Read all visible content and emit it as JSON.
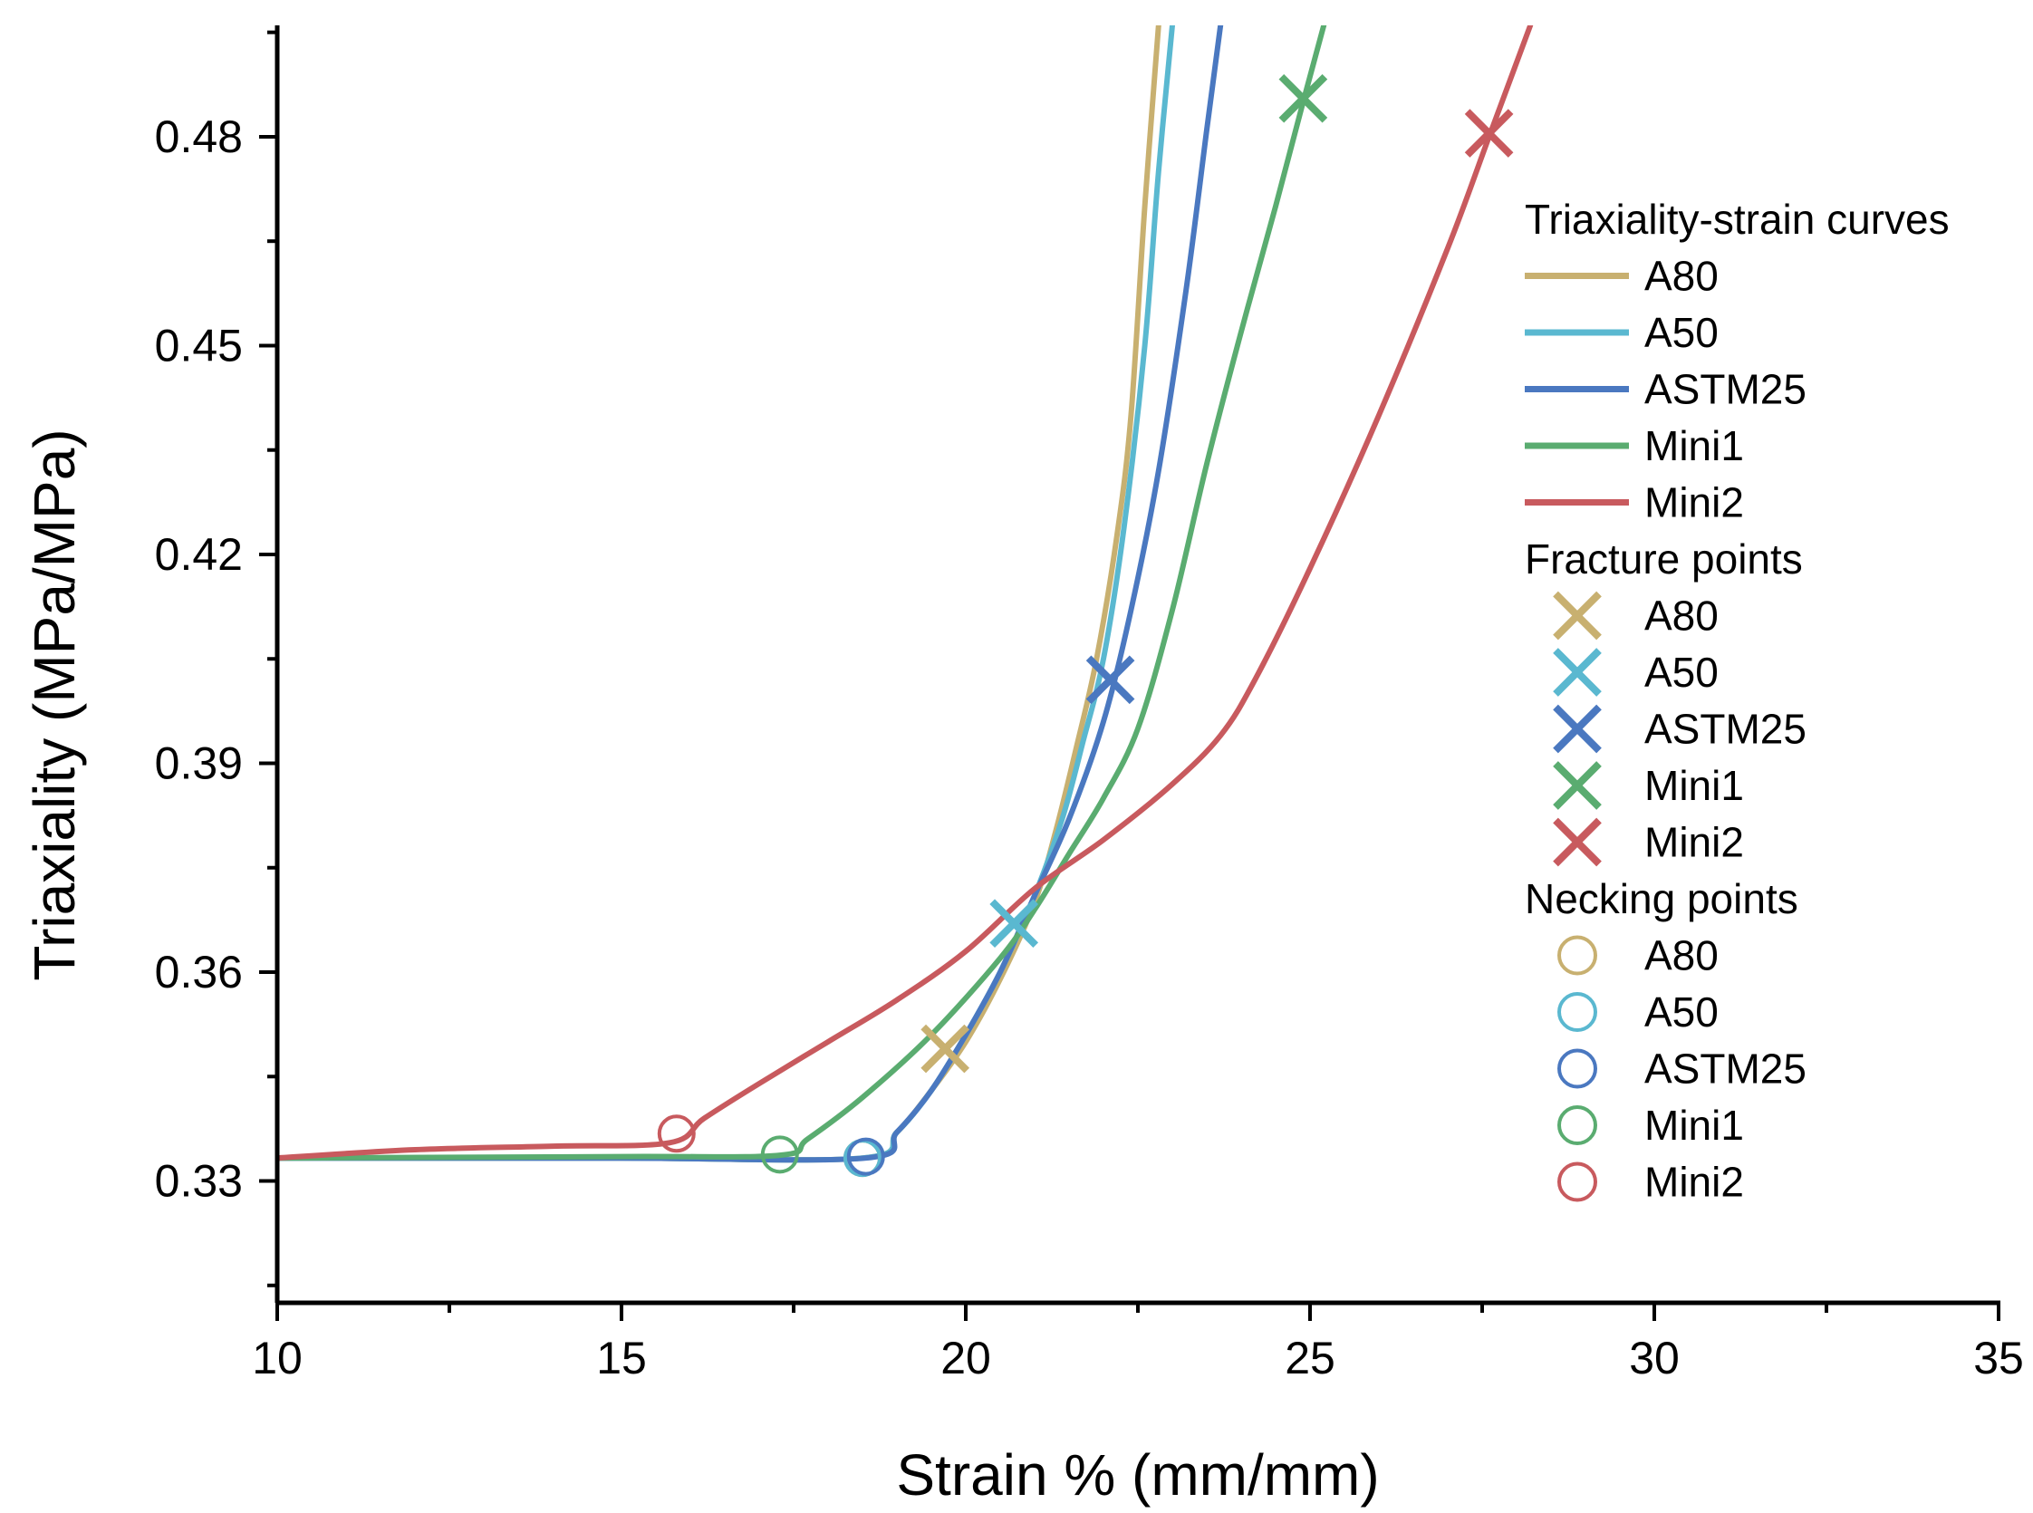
{
  "chart_data": {
    "type": "line",
    "xlabel": "Strain % (mm/mm)",
    "ylabel": "Triaxiality (MPa/MPa)",
    "xlim": [
      10,
      35
    ],
    "ylim": [
      0.3125,
      0.496
    ],
    "xticks": [
      10,
      15,
      20,
      25,
      30,
      35
    ],
    "xtick_labels": [
      "10",
      "15",
      "20",
      "25",
      "30",
      "35"
    ],
    "yticks": [
      0.33,
      0.36,
      0.39,
      0.42,
      0.45,
      0.48
    ],
    "ytick_labels": [
      "0.33",
      "0.36",
      "0.39",
      "0.42",
      "0.45",
      "0.48"
    ],
    "legend_position": "right",
    "legend_groups": [
      {
        "title": "Triaxiality-strain curves",
        "marker": "line",
        "entries": [
          "A80",
          "A50",
          "ASTM25",
          "Mini1",
          "Mini2"
        ]
      },
      {
        "title": "Fracture points",
        "marker": "x",
        "entries": [
          "A80",
          "A50",
          "ASTM25",
          "Mini1",
          "Mini2"
        ]
      },
      {
        "title": "Necking points",
        "marker": "circle",
        "entries": [
          "A80",
          "A50",
          "ASTM25",
          "Mini1",
          "Mini2"
        ]
      }
    ],
    "series": [
      {
        "name": "A80",
        "color": "#c8b070",
        "curve": [
          [
            10,
            0.3333
          ],
          [
            15,
            0.3333
          ],
          [
            18.5,
            0.3333
          ],
          [
            19.0,
            0.337
          ],
          [
            19.5,
            0.343
          ],
          [
            20.0,
            0.35
          ],
          [
            20.5,
            0.359
          ],
          [
            21.0,
            0.37
          ],
          [
            21.3,
            0.38
          ],
          [
            21.6,
            0.392
          ],
          [
            21.9,
            0.405
          ],
          [
            22.2,
            0.423
          ],
          [
            22.4,
            0.44
          ],
          [
            22.6,
            0.47
          ],
          [
            22.8,
            0.496
          ]
        ],
        "fracture": [
          19.7,
          0.349
        ],
        "necking": [
          18.5,
          0.3333
        ]
      },
      {
        "name": "A50",
        "color": "#5ab8d0",
        "curve": [
          [
            10,
            0.3333
          ],
          [
            15,
            0.3333
          ],
          [
            18.5,
            0.3333
          ],
          [
            19.0,
            0.337
          ],
          [
            19.5,
            0.343
          ],
          [
            20.0,
            0.351
          ],
          [
            20.5,
            0.36
          ],
          [
            21.0,
            0.371
          ],
          [
            21.4,
            0.382
          ],
          [
            21.7,
            0.393
          ],
          [
            22.0,
            0.405
          ],
          [
            22.3,
            0.424
          ],
          [
            22.6,
            0.45
          ],
          [
            22.8,
            0.475
          ],
          [
            23.0,
            0.496
          ]
        ],
        "fracture": [
          20.7,
          0.367
        ],
        "necking": [
          18.5,
          0.3333
        ]
      },
      {
        "name": "ASTM25",
        "color": "#4a78c0",
        "curve": [
          [
            10,
            0.3333
          ],
          [
            15,
            0.3333
          ],
          [
            18.55,
            0.3333
          ],
          [
            19.0,
            0.337
          ],
          [
            19.5,
            0.343
          ],
          [
            20.0,
            0.351
          ],
          [
            20.5,
            0.36
          ],
          [
            21.0,
            0.371
          ],
          [
            21.5,
            0.382
          ],
          [
            22.0,
            0.396
          ],
          [
            22.4,
            0.412
          ],
          [
            22.8,
            0.432
          ],
          [
            23.2,
            0.458
          ],
          [
            23.5,
            0.481
          ],
          [
            23.7,
            0.496
          ]
        ],
        "fracture": [
          22.1,
          0.402
        ],
        "necking": [
          18.55,
          0.3335
        ]
      },
      {
        "name": "Mini1",
        "color": "#5aac70",
        "curve": [
          [
            10,
            0.3333
          ],
          [
            15,
            0.3335
          ],
          [
            17.3,
            0.3337
          ],
          [
            17.7,
            0.336
          ],
          [
            18.5,
            0.342
          ],
          [
            19.5,
            0.351
          ],
          [
            20.5,
            0.362
          ],
          [
            21.0,
            0.369
          ],
          [
            21.5,
            0.377
          ],
          [
            22.0,
            0.385
          ],
          [
            22.5,
            0.395
          ],
          [
            23.0,
            0.412
          ],
          [
            23.5,
            0.433
          ],
          [
            24.0,
            0.452
          ],
          [
            24.5,
            0.47
          ],
          [
            24.9,
            0.485
          ],
          [
            25.2,
            0.496
          ]
        ],
        "fracture": [
          24.9,
          0.4855
        ],
        "necking": [
          17.3,
          0.3338
        ]
      },
      {
        "name": "Mini2",
        "color": "#c85a5e",
        "curve": [
          [
            10,
            0.3333
          ],
          [
            12,
            0.3345
          ],
          [
            14,
            0.335
          ],
          [
            15.7,
            0.3355
          ],
          [
            16.2,
            0.339
          ],
          [
            17.0,
            0.344
          ],
          [
            18.0,
            0.35
          ],
          [
            19.0,
            0.356
          ],
          [
            20.0,
            0.363
          ],
          [
            21.0,
            0.372
          ],
          [
            22.0,
            0.379
          ],
          [
            23.0,
            0.387
          ],
          [
            23.7,
            0.394
          ],
          [
            24.2,
            0.402
          ],
          [
            25.0,
            0.418
          ],
          [
            26.0,
            0.44
          ],
          [
            27.0,
            0.464
          ],
          [
            27.6,
            0.48
          ],
          [
            28.2,
            0.496
          ]
        ],
        "fracture": [
          27.6,
          0.4805
        ],
        "necking": [
          15.8,
          0.3368
        ]
      }
    ]
  }
}
